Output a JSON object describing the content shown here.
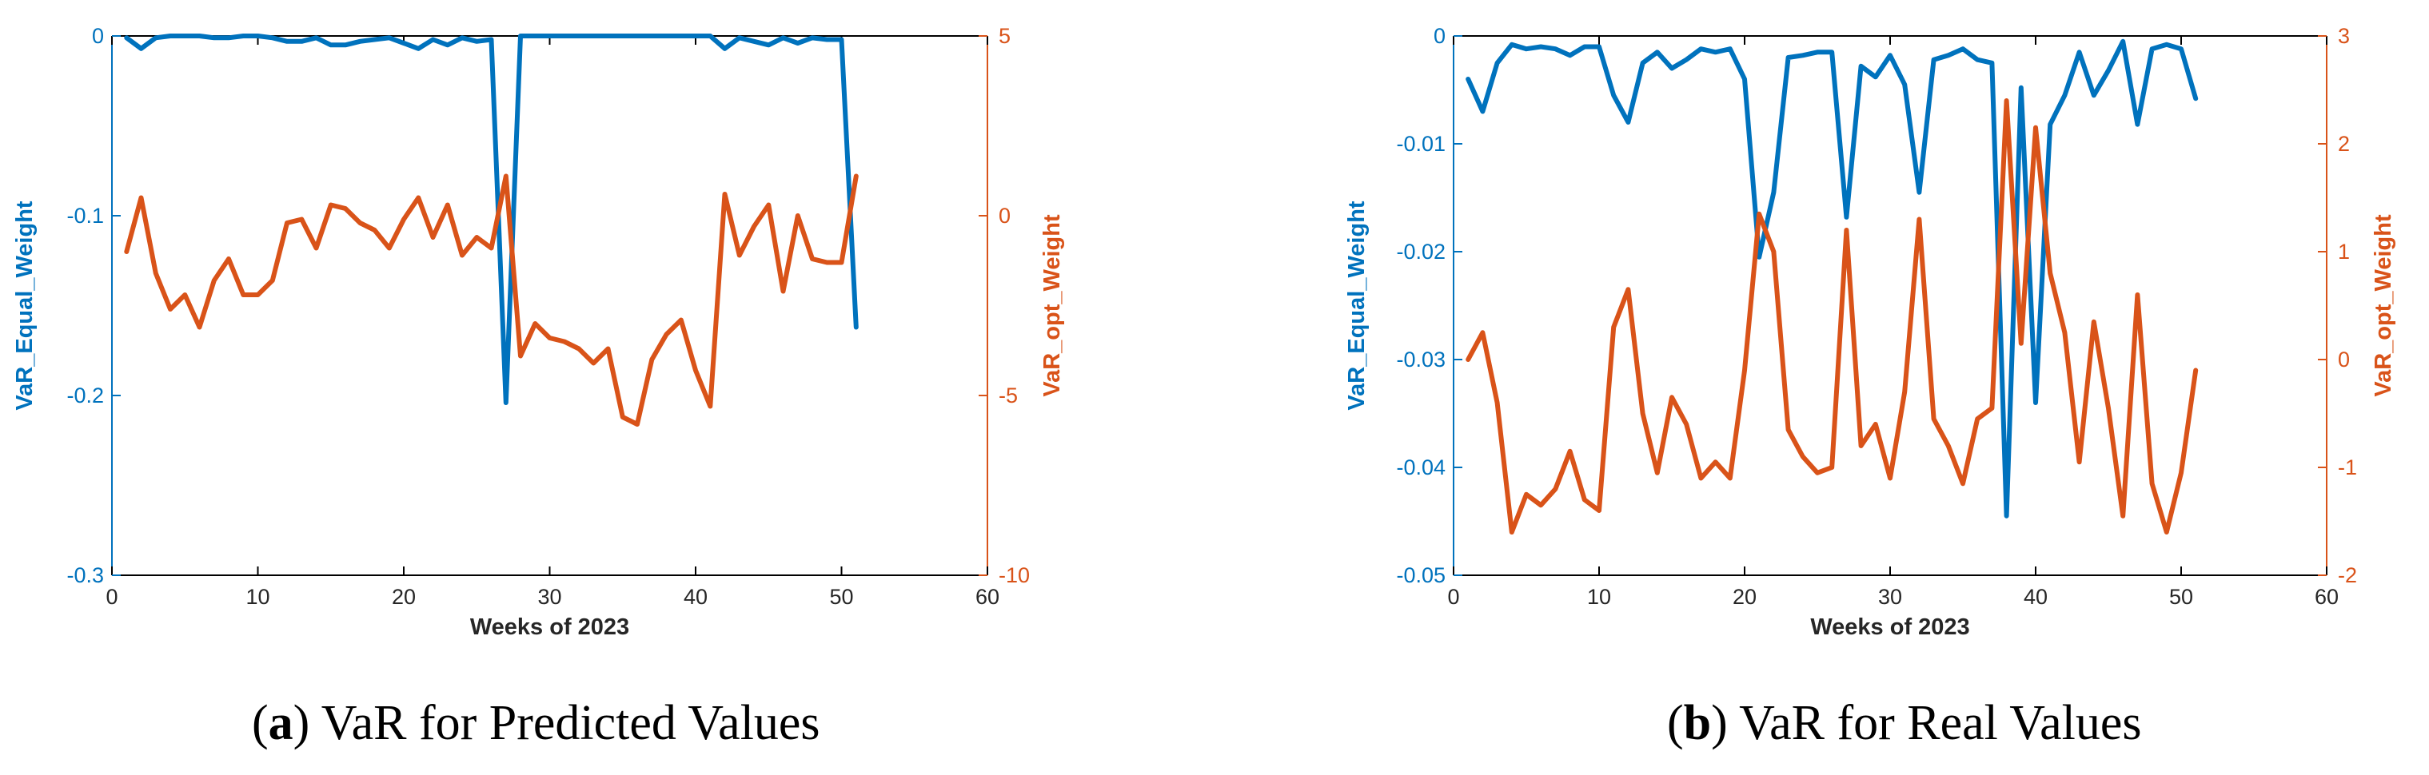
{
  "colors": {
    "left_axis": "#0072BD",
    "right_axis": "#D95319",
    "axes": "#000000"
  },
  "chart_data": [
    {
      "type": "line",
      "caption_letter": "a",
      "caption_text": "VaR for Predicted Values",
      "xlabel": "Weeks of 2023",
      "ylabel_left": "VaR_Equal_Weight",
      "ylabel_right": "VaR_opt_Weight",
      "xlim": [
        0,
        60
      ],
      "ylim_left": [
        -0.3,
        0
      ],
      "ylim_right": [
        -10,
        5
      ],
      "x_ticks": [
        0,
        10,
        20,
        30,
        40,
        50,
        60
      ],
      "y_left_ticks": [
        0,
        -0.1,
        -0.2,
        -0.3
      ],
      "y_right_ticks": [
        5,
        0,
        -5,
        -10
      ],
      "x": [
        1,
        2,
        3,
        4,
        5,
        6,
        7,
        8,
        9,
        10,
        11,
        12,
        13,
        14,
        15,
        16,
        17,
        18,
        19,
        20,
        21,
        22,
        23,
        24,
        25,
        26,
        27,
        28,
        29,
        30,
        31,
        32,
        33,
        34,
        35,
        36,
        37,
        38,
        39,
        40,
        41,
        42,
        43,
        44,
        45,
        46,
        47,
        48,
        49,
        50,
        51
      ],
      "series": [
        {
          "name": "VaR_Equal_Weight",
          "axis": "left",
          "values": [
            -0.001,
            -0.007,
            -0.001,
            0,
            0,
            0,
            -0.001,
            -0.001,
            0,
            0,
            -0.001,
            -0.003,
            -0.003,
            -0.001,
            -0.005,
            -0.005,
            -0.003,
            -0.002,
            -0.001,
            -0.004,
            -0.007,
            -0.002,
            -0.005,
            -0.001,
            -0.003,
            -0.002,
            -0.204,
            0,
            0,
            0,
            0,
            0,
            0,
            0,
            0,
            0,
            0,
            0,
            0,
            0,
            0,
            -0.007,
            -0.001,
            -0.003,
            -0.005,
            -0.001,
            -0.004,
            -0.001,
            -0.002,
            -0.002,
            -0.162
          ]
        },
        {
          "name": "VaR_opt_Weight",
          "axis": "right",
          "values": [
            -1.0,
            0.5,
            -1.6,
            -2.6,
            -2.2,
            -3.1,
            -1.8,
            -1.2,
            -2.2,
            -2.2,
            -1.8,
            -0.2,
            -0.1,
            -0.9,
            0.3,
            0.2,
            -0.2,
            -0.4,
            -0.9,
            -0.1,
            0.5,
            -0.6,
            0.3,
            -1.1,
            -0.6,
            -0.9,
            1.1,
            -3.9,
            -3.0,
            -3.4,
            -3.5,
            -3.7,
            -4.1,
            -3.7,
            -5.6,
            -5.8,
            -4.0,
            -3.3,
            -2.9,
            -4.3,
            -5.3,
            0.6,
            -1.1,
            -0.3,
            0.3,
            -2.1,
            0,
            -1.2,
            -1.3,
            -1.3,
            1.1
          ]
        }
      ]
    },
    {
      "type": "line",
      "caption_letter": "b",
      "caption_text": "VaR for Real Values",
      "xlabel": "Weeks of 2023",
      "ylabel_left": "VaR_Equal_Weight",
      "ylabel_right": "VaR_opt_Weight",
      "xlim": [
        0,
        60
      ],
      "ylim_left": [
        -0.05,
        0
      ],
      "ylim_right": [
        -2,
        3
      ],
      "x_ticks": [
        0,
        10,
        20,
        30,
        40,
        50,
        60
      ],
      "y_left_ticks": [
        0,
        -0.01,
        -0.02,
        -0.03,
        -0.04,
        -0.05
      ],
      "y_right_ticks": [
        3,
        2,
        1,
        0,
        -1,
        -2
      ],
      "x": [
        1,
        2,
        3,
        4,
        5,
        6,
        7,
        8,
        9,
        10,
        11,
        12,
        13,
        14,
        15,
        16,
        17,
        18,
        19,
        20,
        21,
        22,
        23,
        24,
        25,
        26,
        27,
        28,
        29,
        30,
        31,
        32,
        33,
        34,
        35,
        36,
        37,
        38,
        39,
        40,
        41,
        42,
        43,
        44,
        45,
        46,
        47,
        48,
        49,
        50,
        51
      ],
      "series": [
        {
          "name": "VaR_Equal_Weight",
          "axis": "left",
          "values": [
            -0.004,
            -0.007,
            -0.0025,
            -0.0008,
            -0.0012,
            -0.001,
            -0.0012,
            -0.0018,
            -0.001,
            -0.001,
            -0.0055,
            -0.008,
            -0.0025,
            -0.0015,
            -0.003,
            -0.0022,
            -0.0012,
            -0.0015,
            -0.0012,
            -0.004,
            -0.0205,
            -0.0145,
            -0.002,
            -0.0018,
            -0.0015,
            -0.0015,
            -0.0168,
            -0.0028,
            -0.0038,
            -0.0018,
            -0.0045,
            -0.0145,
            -0.0022,
            -0.0018,
            -0.0012,
            -0.0022,
            -0.0025,
            -0.0445,
            -0.0048,
            -0.034,
            -0.0082,
            -0.0055,
            -0.0015,
            -0.0055,
            -0.0032,
            -0.0005,
            -0.0082,
            -0.0012,
            -0.0008,
            -0.0012,
            -0.0058
          ]
        },
        {
          "name": "VaR_opt_Weight",
          "axis": "right",
          "values": [
            0,
            0.25,
            -0.4,
            -1.6,
            -1.25,
            -1.35,
            -1.2,
            -0.85,
            -1.3,
            -1.4,
            0.3,
            0.65,
            -0.5,
            -1.05,
            -0.35,
            -0.6,
            -1.1,
            -0.95,
            -1.1,
            -0.1,
            1.35,
            1.0,
            -0.65,
            -0.9,
            -1.05,
            -1.0,
            1.2,
            -0.8,
            -0.6,
            -1.1,
            -0.3,
            1.3,
            -0.55,
            -0.8,
            -1.15,
            -0.55,
            -0.45,
            2.4,
            0.15,
            2.15,
            0.8,
            0.25,
            -0.95,
            0.35,
            -0.45,
            -1.45,
            0.6,
            -1.15,
            -1.6,
            -1.05,
            -0.1
          ]
        }
      ]
    }
  ]
}
